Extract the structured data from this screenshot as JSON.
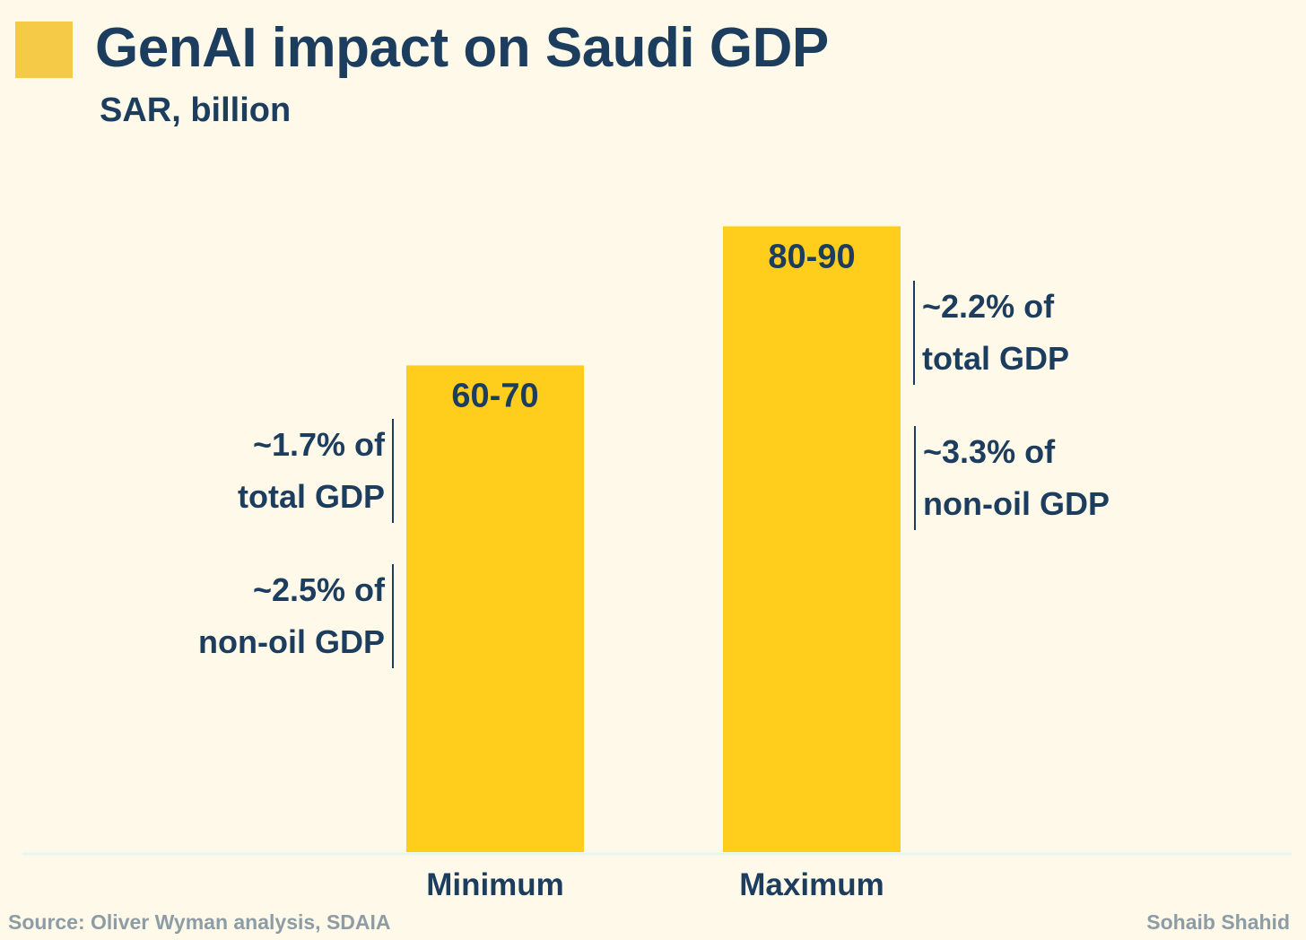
{
  "title": "GenAI impact on Saudi GDP",
  "subtitle": "SAR, billion",
  "chart_data": {
    "type": "bar",
    "title": "GenAI impact on Saudi GDP",
    "subtitle": "SAR, billion",
    "categories": [
      "Minimum",
      "Maximum"
    ],
    "ranges": [
      [
        60,
        70
      ],
      [
        80,
        90
      ]
    ],
    "values": [
      70,
      90
    ],
    "data_labels": [
      "60-70",
      "80-90"
    ],
    "ylabel": "SAR, billion",
    "ylim": [
      0,
      88.5
    ],
    "grid": false,
    "bar_color": "#ffcd1b",
    "annotations": [
      {
        "category": "Minimum",
        "side": "left",
        "lines": [
          "~1.7% of",
          "total GDP"
        ]
      },
      {
        "category": "Minimum",
        "side": "left",
        "lines": [
          "~2.5% of",
          "non-oil GDP"
        ]
      },
      {
        "category": "Maximum",
        "side": "right",
        "lines": [
          "~2.2% of",
          "total GDP"
        ]
      },
      {
        "category": "Maximum",
        "side": "right",
        "lines": [
          "~3.3% of",
          "non-oil GDP"
        ]
      }
    ]
  },
  "footer": {
    "source": "Source: Oliver Wyman analysis, SDAIA",
    "author": "Sohaib Shahid"
  }
}
